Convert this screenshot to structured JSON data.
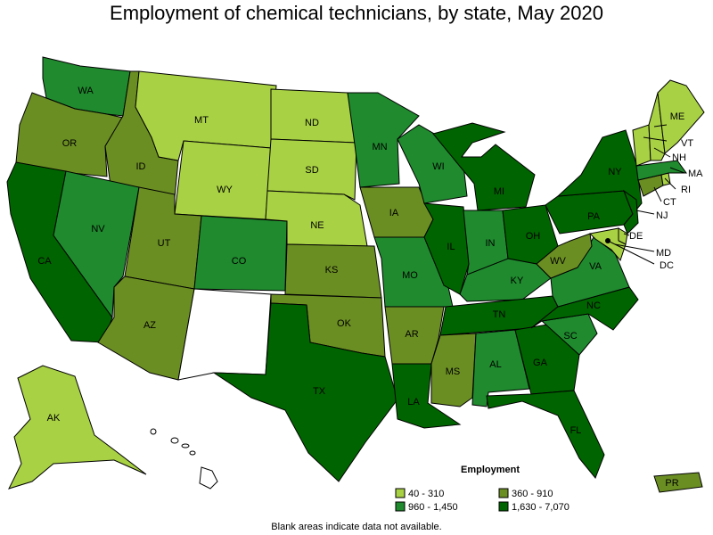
{
  "title": "Employment of chemical technicians, by state, May 2020",
  "note": "Blank areas indicate data not available.",
  "legend": {
    "title": "Employment",
    "items": [
      {
        "label": "40 - 310",
        "color": "#a8d144"
      },
      {
        "label": "360 - 910",
        "color": "#6b8e23"
      },
      {
        "label": "960 - 1,450",
        "color": "#1f8a2e"
      },
      {
        "label": "1,630 - 7,070",
        "color": "#006400"
      }
    ]
  },
  "states": [
    {
      "abbr": "WA",
      "class": 2
    },
    {
      "abbr": "OR",
      "class": 1
    },
    {
      "abbr": "CA",
      "class": 3
    },
    {
      "abbr": "ID",
      "class": 1
    },
    {
      "abbr": "NV",
      "class": 2
    },
    {
      "abbr": "MT",
      "class": 0
    },
    {
      "abbr": "WY",
      "class": 0
    },
    {
      "abbr": "UT",
      "class": 1
    },
    {
      "abbr": "AZ",
      "class": 1
    },
    {
      "abbr": "CO",
      "class": 2
    },
    {
      "abbr": "NM",
      "class": null
    },
    {
      "abbr": "ND",
      "class": 0
    },
    {
      "abbr": "SD",
      "class": 0
    },
    {
      "abbr": "NE",
      "class": 0
    },
    {
      "abbr": "KS",
      "class": 1
    },
    {
      "abbr": "OK",
      "class": 1
    },
    {
      "abbr": "TX",
      "class": 3
    },
    {
      "abbr": "MN",
      "class": 2
    },
    {
      "abbr": "IA",
      "class": 1
    },
    {
      "abbr": "MO",
      "class": 2
    },
    {
      "abbr": "AR",
      "class": 1
    },
    {
      "abbr": "LA",
      "class": 3
    },
    {
      "abbr": "WI",
      "class": 2
    },
    {
      "abbr": "IL",
      "class": 3
    },
    {
      "abbr": "MI",
      "class": 3
    },
    {
      "abbr": "IN",
      "class": 2
    },
    {
      "abbr": "OH",
      "class": 3
    },
    {
      "abbr": "KY",
      "class": 2
    },
    {
      "abbr": "TN",
      "class": 3
    },
    {
      "abbr": "MS",
      "class": 1
    },
    {
      "abbr": "AL",
      "class": 2
    },
    {
      "abbr": "GA",
      "class": 3
    },
    {
      "abbr": "FL",
      "class": 3
    },
    {
      "abbr": "SC",
      "class": 2
    },
    {
      "abbr": "NC",
      "class": 3
    },
    {
      "abbr": "VA",
      "class": 2
    },
    {
      "abbr": "WV",
      "class": 1
    },
    {
      "abbr": "PA",
      "class": 3
    },
    {
      "abbr": "NY",
      "class": 3
    },
    {
      "abbr": "NJ",
      "class": 3
    },
    {
      "abbr": "DE",
      "class": 0
    },
    {
      "abbr": "MD",
      "class": 0
    },
    {
      "abbr": "DC",
      "class": 0
    },
    {
      "abbr": "CT",
      "class": 1
    },
    {
      "abbr": "RI",
      "class": 0
    },
    {
      "abbr": "MA",
      "class": 2
    },
    {
      "abbr": "VT",
      "class": 0
    },
    {
      "abbr": "NH",
      "class": 0
    },
    {
      "abbr": "ME",
      "class": 0
    },
    {
      "abbr": "AK",
      "class": 0
    },
    {
      "abbr": "HI",
      "class": null
    },
    {
      "abbr": "PR",
      "class": 1
    }
  ]
}
